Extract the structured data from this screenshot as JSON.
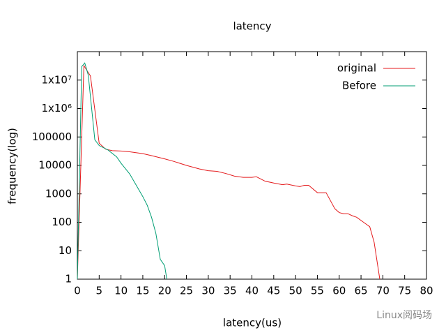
{
  "chart_data": {
    "type": "line",
    "title": "latency",
    "x_label": "latency(us)",
    "y_label": "frequency(log)",
    "xlim": [
      0,
      80
    ],
    "xticks": [
      0,
      5,
      10,
      15,
      20,
      25,
      30,
      35,
      40,
      45,
      50,
      55,
      60,
      65,
      70,
      75,
      80
    ],
    "ylim": [
      1,
      100000000
    ],
    "y_scale": "log",
    "yticks": [
      1,
      10,
      100,
      1000,
      10000,
      100000,
      {
        "value": 1000000,
        "label": "1x10⁶"
      },
      {
        "value": 10000000,
        "label": "1x10⁷"
      }
    ],
    "legend": "top right",
    "series": [
      {
        "name": "original",
        "color": "#e41a1c",
        "x": [
          0,
          1.5,
          3,
          5,
          6.5,
          8,
          10,
          12,
          15,
          17,
          20,
          22,
          25,
          28,
          30,
          32,
          34,
          36,
          38,
          40,
          41,
          43,
          45,
          47,
          48,
          50,
          51,
          52,
          53,
          55,
          57,
          59,
          60,
          61,
          62,
          63,
          64,
          66,
          67,
          68,
          69,
          69.3
        ],
        "values": [
          1,
          32000000,
          14000000,
          60000,
          37000,
          33000,
          32000,
          30000,
          26000,
          22000,
          17000,
          14000,
          10000,
          7500,
          6500,
          6200,
          5200,
          4200,
          3800,
          3800,
          4000,
          2800,
          2400,
          2100,
          2200,
          1900,
          1800,
          2000,
          2000,
          1100,
          1100,
          300,
          220,
          200,
          200,
          170,
          150,
          90,
          70,
          20,
          2,
          1
        ]
      },
      {
        "name": "Before",
        "color": "#009e73",
        "x": [
          0,
          1,
          1.7,
          2.5,
          4,
          5,
          7,
          9,
          10,
          12,
          15,
          16,
          17,
          18,
          19,
          20,
          20.5
        ],
        "values": [
          1,
          30000000,
          40000000,
          15000000,
          80000,
          50000,
          35000,
          20000,
          12000,
          5000,
          800,
          400,
          150,
          40,
          5,
          3,
          1
        ]
      }
    ],
    "watermark": "Linux阅码场"
  }
}
